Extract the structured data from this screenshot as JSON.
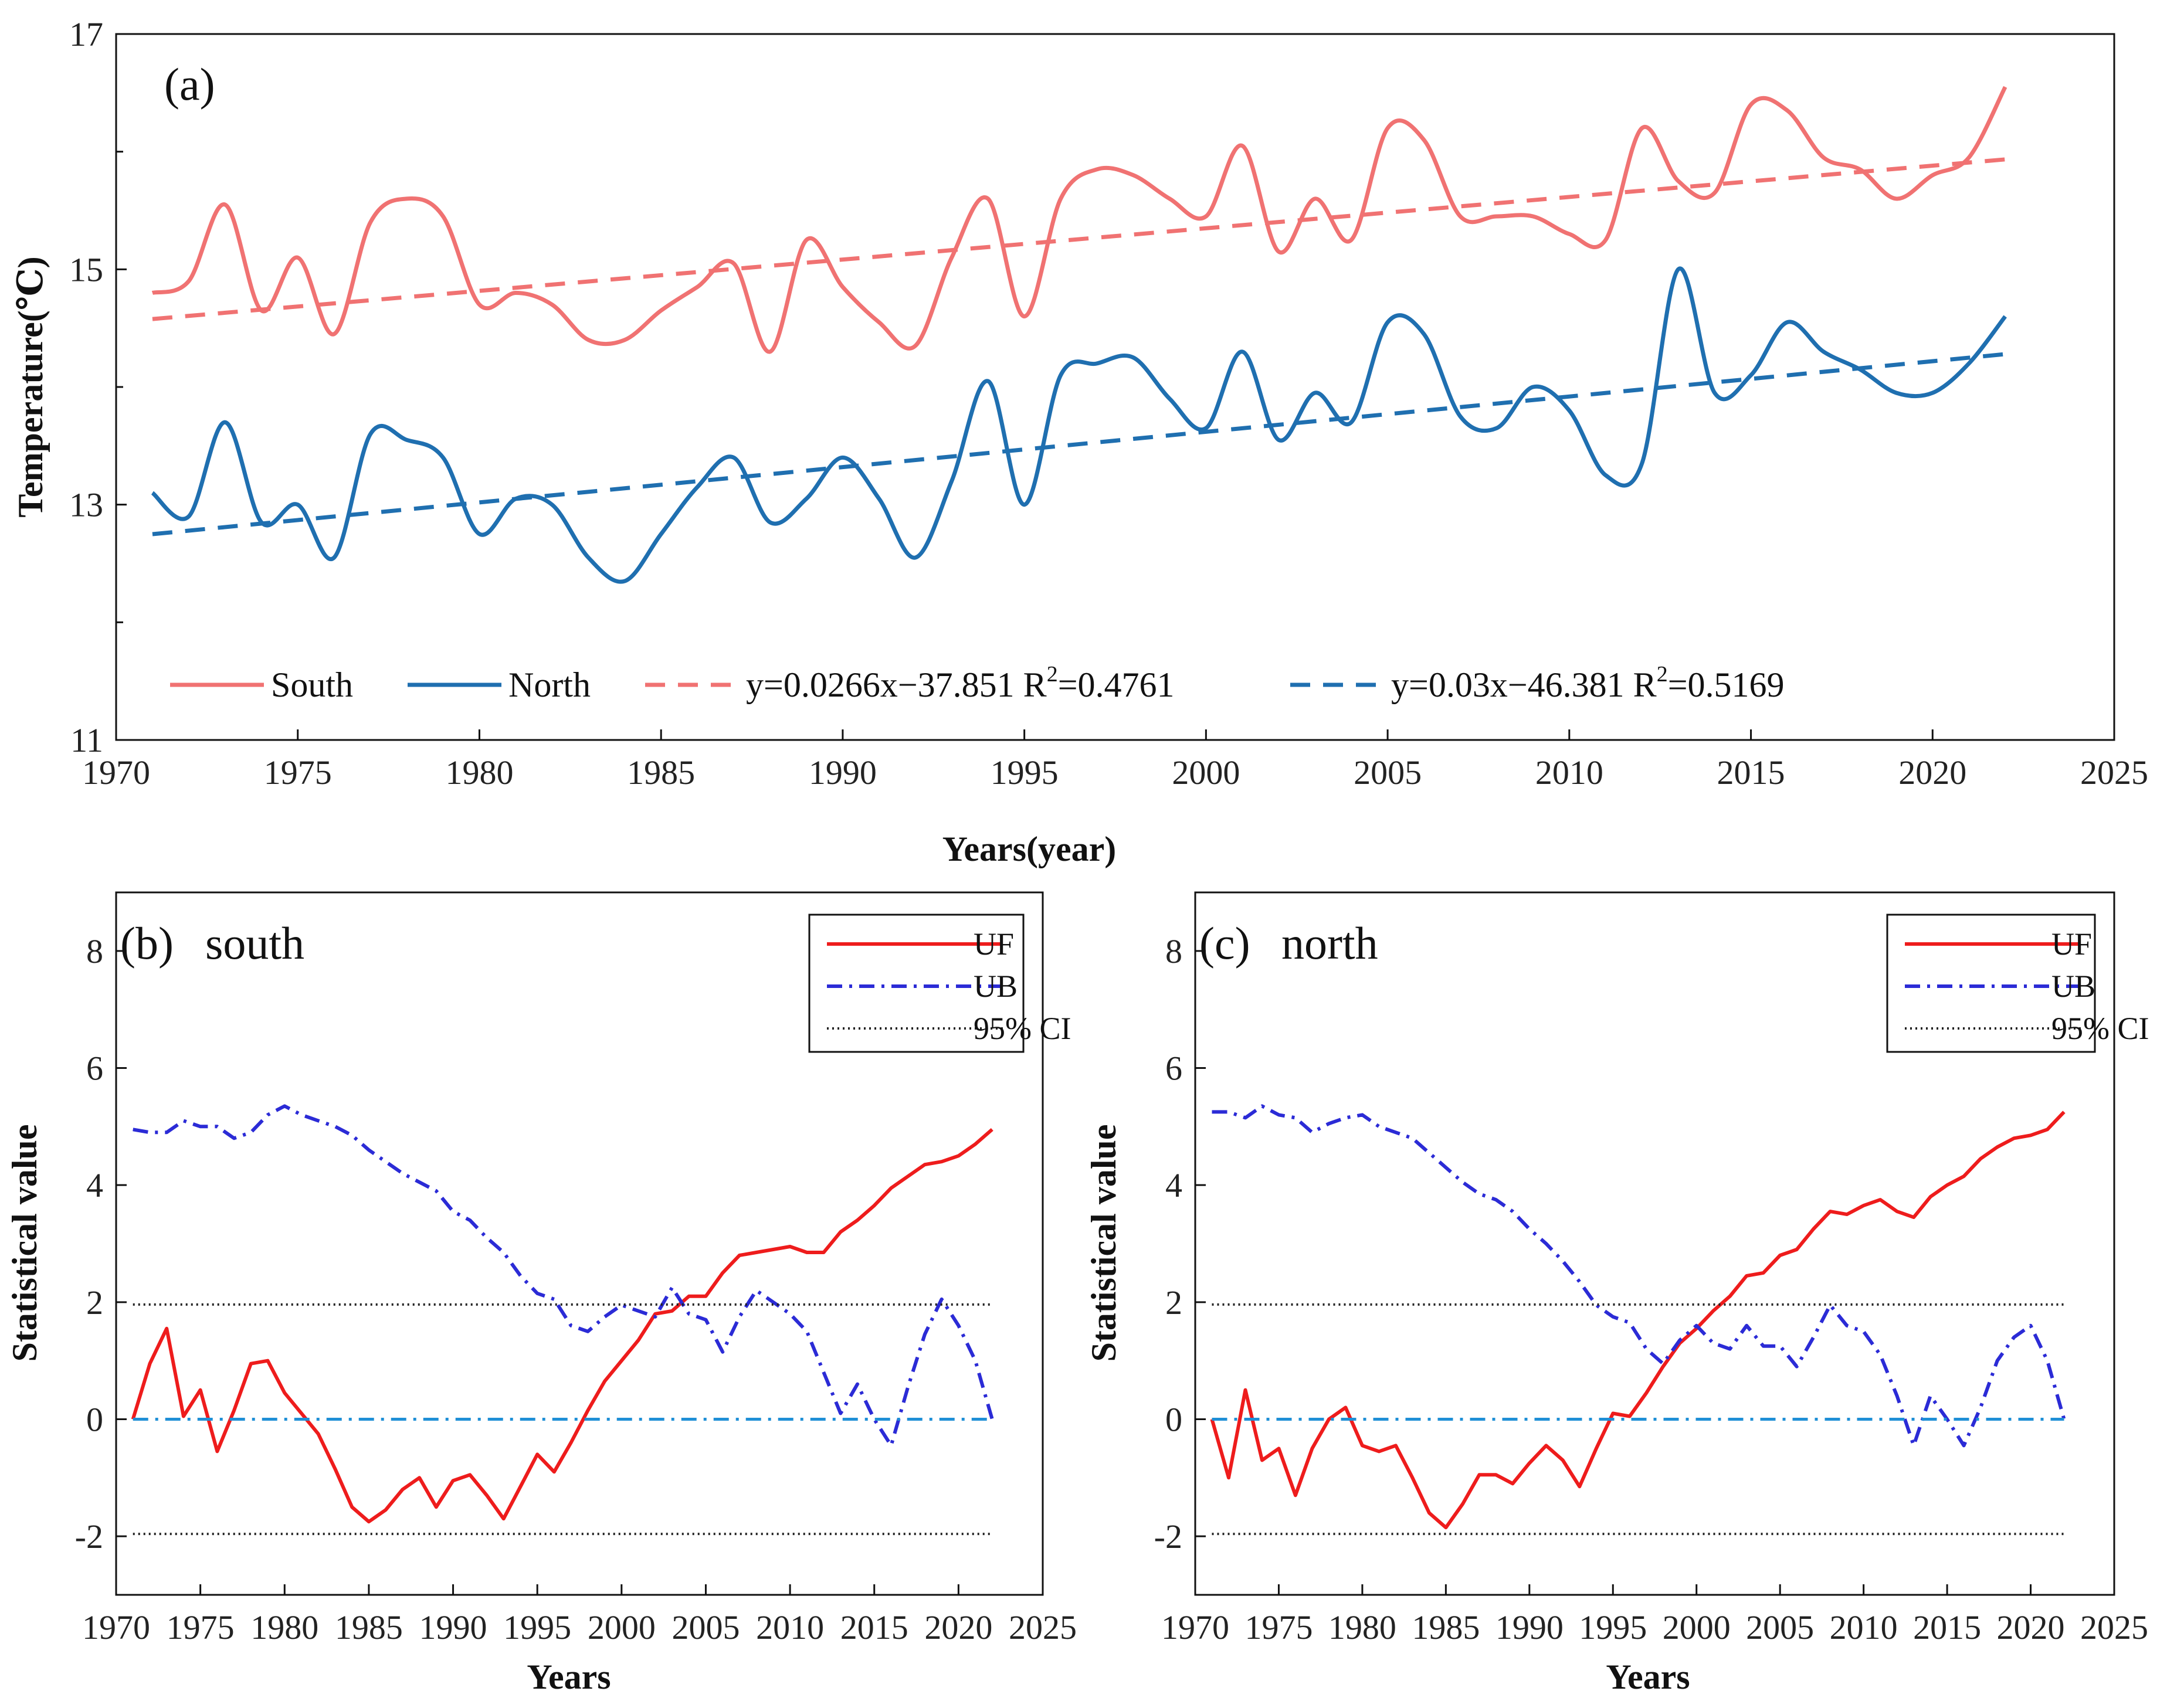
{
  "chart_data": [
    {
      "panel": "(a)",
      "type": "line",
      "xlabel": "Years(year)",
      "ylabel": "Temperature(°C)",
      "xlim": [
        1970,
        2025
      ],
      "ylim": [
        11,
        17
      ],
      "xticks": [
        "1970",
        "1975",
        "1980",
        "1985",
        "1990",
        "1995",
        "2000",
        "2005",
        "2010",
        "2015",
        "2020",
        "2025"
      ],
      "yticks": [
        "11",
        "13",
        "15",
        "17"
      ],
      "series": [
        {
          "name": "South",
          "color": "#f07272",
          "style": "solid",
          "smooth": true,
          "x": [
            1971,
            1972,
            1973,
            1974,
            1975,
            1976,
            1977,
            1978,
            1979,
            1980,
            1981,
            1982,
            1983,
            1984,
            1985,
            1986,
            1987,
            1988,
            1989,
            1990,
            1991,
            1992,
            1993,
            1994,
            1995,
            1996,
            1997,
            1998,
            1999,
            2000,
            2001,
            2002,
            2003,
            2004,
            2005,
            2006,
            2007,
            2008,
            2009,
            2010,
            2011,
            2012,
            2013,
            2014,
            2015,
            2016,
            2017,
            2018,
            2019,
            2020,
            2021,
            2022
          ],
          "values": [
            14.8,
            14.9,
            15.55,
            14.65,
            15.1,
            14.45,
            15.4,
            15.6,
            15.45,
            14.7,
            14.8,
            14.7,
            14.4,
            14.4,
            14.65,
            14.85,
            15.05,
            14.3,
            15.25,
            14.85,
            14.55,
            14.35,
            15.1,
            15.6,
            14.6,
            15.6,
            15.85,
            15.8,
            15.6,
            15.45,
            16.05,
            15.15,
            15.6,
            15.25,
            16.2,
            16.1,
            15.45,
            15.45,
            15.45,
            15.3,
            15.25,
            16.2,
            15.75,
            15.65,
            16.4,
            16.35,
            15.95,
            15.85,
            15.6,
            15.8,
            15.95,
            16.55
          ]
        },
        {
          "name": "North",
          "color": "#1f6fb0",
          "style": "solid",
          "smooth": true,
          "x": [
            1971,
            1972,
            1973,
            1974,
            1975,
            1976,
            1977,
            1978,
            1979,
            1980,
            1981,
            1982,
            1983,
            1984,
            1985,
            1986,
            1987,
            1988,
            1989,
            1990,
            1991,
            1992,
            1993,
            1994,
            1995,
            1996,
            1997,
            1998,
            1999,
            2000,
            2001,
            2002,
            2003,
            2004,
            2005,
            2006,
            2007,
            2008,
            2009,
            2010,
            2011,
            2012,
            2013,
            2014,
            2015,
            2016,
            2017,
            2018,
            2019,
            2020,
            2021,
            2022
          ],
          "values": [
            13.1,
            12.9,
            13.7,
            12.85,
            13.0,
            12.55,
            13.6,
            13.55,
            13.4,
            12.75,
            13.05,
            13.0,
            12.55,
            12.35,
            12.75,
            13.15,
            13.4,
            12.85,
            13.05,
            13.4,
            13.05,
            12.55,
            13.2,
            14.05,
            13.0,
            14.1,
            14.2,
            14.25,
            13.9,
            13.65,
            14.3,
            13.55,
            13.95,
            13.7,
            14.55,
            14.45,
            13.75,
            13.65,
            14.0,
            13.8,
            13.25,
            13.35,
            15.0,
            13.95,
            14.1,
            14.55,
            14.3,
            14.15,
            13.95,
            13.95,
            14.2,
            14.6
          ]
        },
        {
          "name": "y=0.0266x−37.851",
          "r2_label": "R",
          "r2_sup": "2",
          "r2_value": "=0.4761",
          "slope": 0.0266,
          "intercept": -37.851,
          "r2": 0.4761,
          "color": "#f07272",
          "style": "dashed",
          "x": [
            1971,
            2022
          ]
        },
        {
          "name": "y=0.03x−46.381",
          "r2_label": "R",
          "r2_sup": "2",
          "r2_value": "=0.5169",
          "slope": 0.03,
          "intercept": -46.381,
          "r2": 0.5169,
          "color": "#1f6fb0",
          "style": "dashed",
          "x": [
            1971,
            2022
          ]
        }
      ],
      "legend": "bottom-left, single row"
    },
    {
      "panel": "(b)",
      "title": "south",
      "type": "line",
      "xlabel": "Years",
      "ylabel": "Statistical value",
      "xlim": [
        1970,
        2025
      ],
      "ylim": [
        -3,
        9
      ],
      "xticks": [
        "1970",
        "1975",
        "1980",
        "1985",
        "1990",
        "1995",
        "2000",
        "2005",
        "2010",
        "2015",
        "2020",
        "2025"
      ],
      "yticks": [
        "-2",
        "0",
        "2",
        "4",
        "6",
        "8"
      ],
      "series": [
        {
          "name": "UF",
          "color": "#ee1c1c",
          "style": "solid",
          "x": [
            1971,
            1972,
            1973,
            1974,
            1975,
            1976,
            1977,
            1978,
            1979,
            1980,
            1981,
            1982,
            1983,
            1984,
            1985,
            1986,
            1987,
            1988,
            1989,
            1990,
            1991,
            1992,
            1993,
            1994,
            1995,
            1996,
            1997,
            1998,
            1999,
            2000,
            2001,
            2002,
            2003,
            2004,
            2005,
            2006,
            2007,
            2008,
            2009,
            2010,
            2011,
            2012,
            2013,
            2014,
            2015,
            2016,
            2017,
            2018,
            2019,
            2020,
            2021,
            2022
          ],
          "values": [
            0.0,
            0.95,
            1.55,
            0.05,
            0.5,
            -0.55,
            0.15,
            0.95,
            1.0,
            0.45,
            0.1,
            -0.25,
            -0.85,
            -1.5,
            -1.75,
            -1.55,
            -1.2,
            -1.0,
            -1.5,
            -1.05,
            -0.95,
            -1.3,
            -1.7,
            -1.15,
            -0.6,
            -0.9,
            -0.4,
            0.15,
            0.65,
            1.0,
            1.35,
            1.8,
            1.85,
            2.1,
            2.1,
            2.5,
            2.8,
            2.85,
            2.9,
            2.95,
            2.85,
            2.85,
            3.2,
            3.4,
            3.65,
            3.95,
            4.15,
            4.35,
            4.4,
            4.5,
            4.7,
            4.95
          ]
        },
        {
          "name": "UB",
          "color": "#2b2bd6",
          "style": "dashdot",
          "x": [
            1971,
            1972,
            1973,
            1974,
            1975,
            1976,
            1977,
            1978,
            1979,
            1980,
            1981,
            1982,
            1983,
            1984,
            1985,
            1986,
            1987,
            1988,
            1989,
            1990,
            1991,
            1992,
            1993,
            1994,
            1995,
            1996,
            1997,
            1998,
            1999,
            2000,
            2001,
            2002,
            2003,
            2004,
            2005,
            2006,
            2007,
            2008,
            2009,
            2010,
            2011,
            2012,
            2013,
            2014,
            2015,
            2016,
            2017,
            2018,
            2019,
            2020,
            2021,
            2022
          ],
          "values": [
            4.95,
            4.9,
            4.9,
            5.1,
            5.0,
            5.0,
            4.8,
            4.9,
            5.2,
            5.35,
            5.2,
            5.1,
            5.0,
            4.85,
            4.6,
            4.4,
            4.2,
            4.05,
            3.9,
            3.55,
            3.4,
            3.1,
            2.85,
            2.45,
            2.15,
            2.05,
            1.6,
            1.5,
            1.75,
            1.95,
            1.85,
            1.75,
            2.25,
            1.8,
            1.7,
            1.15,
            1.75,
            2.2,
            2.0,
            1.8,
            1.5,
            0.8,
            0.1,
            0.6,
            0.0,
            -0.45,
            0.55,
            1.45,
            2.05,
            1.6,
            1.0,
            0.0
          ]
        },
        {
          "name": "95% CI",
          "color": "#222222",
          "style": "dotted",
          "values": [
            1.96,
            -1.96
          ]
        },
        {
          "name": "zero",
          "color": "#1f8fd6",
          "style": "dashdot",
          "values": [
            0
          ]
        }
      ],
      "legend": "top-right"
    },
    {
      "panel": "(c)",
      "title": "north",
      "type": "line",
      "xlabel": "Years",
      "ylabel": "Statistical value",
      "xlim": [
        1970,
        2025
      ],
      "ylim": [
        -3,
        9
      ],
      "xticks": [
        "1970",
        "1975",
        "1980",
        "1985",
        "1990",
        "1995",
        "2000",
        "2005",
        "2010",
        "2015",
        "2020",
        "2025"
      ],
      "yticks": [
        "-2",
        "0",
        "2",
        "4",
        "6",
        "8"
      ],
      "series": [
        {
          "name": "UF",
          "color": "#ee1c1c",
          "style": "solid",
          "x": [
            1971,
            1972,
            1973,
            1974,
            1975,
            1976,
            1977,
            1978,
            1979,
            1980,
            1981,
            1982,
            1983,
            1984,
            1985,
            1986,
            1987,
            1988,
            1989,
            1990,
            1991,
            1992,
            1993,
            1994,
            1995,
            1996,
            1997,
            1998,
            1999,
            2000,
            2001,
            2002,
            2003,
            2004,
            2005,
            2006,
            2007,
            2008,
            2009,
            2010,
            2011,
            2012,
            2013,
            2014,
            2015,
            2016,
            2017,
            2018,
            2019,
            2020,
            2021,
            2022
          ],
          "values": [
            0.0,
            -1.0,
            0.5,
            -0.7,
            -0.5,
            -1.3,
            -0.5,
            0.0,
            0.2,
            -0.45,
            -0.55,
            -0.45,
            -1.0,
            -1.6,
            -1.85,
            -1.45,
            -0.95,
            -0.95,
            -1.1,
            -0.75,
            -0.45,
            -0.7,
            -1.15,
            -0.5,
            0.1,
            0.05,
            0.45,
            0.9,
            1.3,
            1.55,
            1.85,
            2.1,
            2.45,
            2.5,
            2.8,
            2.9,
            3.25,
            3.55,
            3.5,
            3.65,
            3.75,
            3.55,
            3.45,
            3.8,
            4.0,
            4.15,
            4.45,
            4.65,
            4.8,
            4.85,
            4.95,
            5.25
          ]
        },
        {
          "name": "UB",
          "color": "#2b2bd6",
          "style": "dashdot",
          "x": [
            1971,
            1972,
            1973,
            1974,
            1975,
            1976,
            1977,
            1978,
            1979,
            1980,
            1981,
            1982,
            1983,
            1984,
            1985,
            1986,
            1987,
            1988,
            1989,
            1990,
            1991,
            1992,
            1993,
            1994,
            1995,
            1996,
            1997,
            1998,
            1999,
            2000,
            2001,
            2002,
            2003,
            2004,
            2005,
            2006,
            2007,
            2008,
            2009,
            2010,
            2011,
            2012,
            2013,
            2014,
            2015,
            2016,
            2017,
            2018,
            2019,
            2020,
            2021,
            2022
          ],
          "values": [
            5.25,
            5.25,
            5.15,
            5.35,
            5.2,
            5.15,
            4.9,
            5.05,
            5.15,
            5.2,
            5.0,
            4.9,
            4.8,
            4.55,
            4.3,
            4.05,
            3.85,
            3.75,
            3.55,
            3.25,
            3.0,
            2.7,
            2.35,
            1.95,
            1.75,
            1.65,
            1.2,
            0.95,
            1.35,
            1.6,
            1.3,
            1.2,
            1.6,
            1.25,
            1.25,
            0.9,
            1.4,
            1.95,
            1.6,
            1.5,
            1.1,
            0.4,
            -0.45,
            0.4,
            0.0,
            -0.45,
            0.2,
            1.0,
            1.4,
            1.6,
            1.0,
            0.0
          ]
        },
        {
          "name": "95% CI",
          "color": "#222222",
          "style": "dotted",
          "values": [
            1.96,
            -1.96
          ]
        },
        {
          "name": "zero",
          "color": "#1f8fd6",
          "style": "dashdot",
          "values": [
            0
          ]
        }
      ],
      "legend": "top-right"
    }
  ],
  "labels": {
    "a_panel": "(a)",
    "a_ylabel": "Temperature(℃)",
    "a_xlabel": "Years(year)",
    "b_panel": "(b)",
    "b_title": "south",
    "c_panel": "(c)",
    "c_title": "north",
    "bc_ylabel": "Statistical value",
    "bc_xlabel": "Years",
    "legend_uf": "UF",
    "legend_ub": "UB",
    "legend_ci": "95% CI"
  }
}
